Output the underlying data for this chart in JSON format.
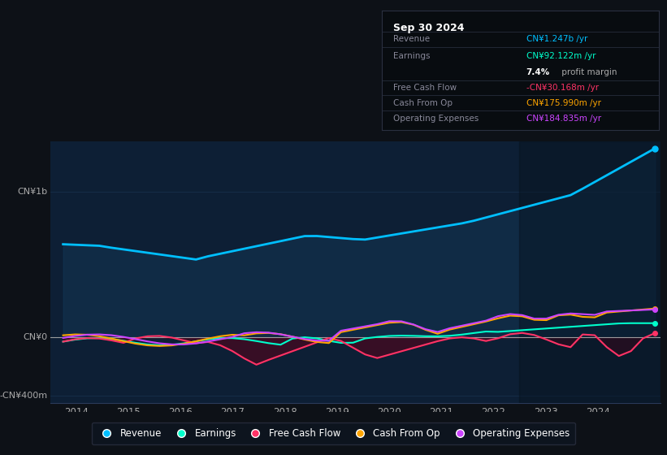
{
  "bg_color": "#0d1117",
  "chart_bg": "#0d1f35",
  "colors": {
    "revenue": "#00bfff",
    "earnings": "#00ffcc",
    "free_cash_flow": "#ff3366",
    "cash_from_op": "#ffa500",
    "operating_expenses": "#cc44ff"
  },
  "legend": [
    {
      "label": "Revenue",
      "color": "#00bfff"
    },
    {
      "label": "Earnings",
      "color": "#00ffcc"
    },
    {
      "label": "Free Cash Flow",
      "color": "#ff3366"
    },
    {
      "label": "Cash From Op",
      "color": "#ffa500"
    },
    {
      "label": "Operating Expenses",
      "color": "#cc44ff"
    }
  ],
  "info_title": "Sep 30 2024",
  "info_rows": [
    {
      "label": "Revenue",
      "value": "CN¥1.247b /yr",
      "color": "#00bfff"
    },
    {
      "label": "Earnings",
      "value": "CN¥92.122m /yr",
      "color": "#00ffcc"
    },
    {
      "label": "",
      "value": "7.4% profit margin",
      "color": "#ffffff"
    },
    {
      "label": "Free Cash Flow",
      "value": "-CN¥30.168m /yr",
      "color": "#ff3366"
    },
    {
      "label": "Cash From Op",
      "value": "CN¥175.990m /yr",
      "color": "#ffa500"
    },
    {
      "label": "Operating Expenses",
      "value": "CN¥184.835m /yr",
      "color": "#cc44ff"
    }
  ]
}
